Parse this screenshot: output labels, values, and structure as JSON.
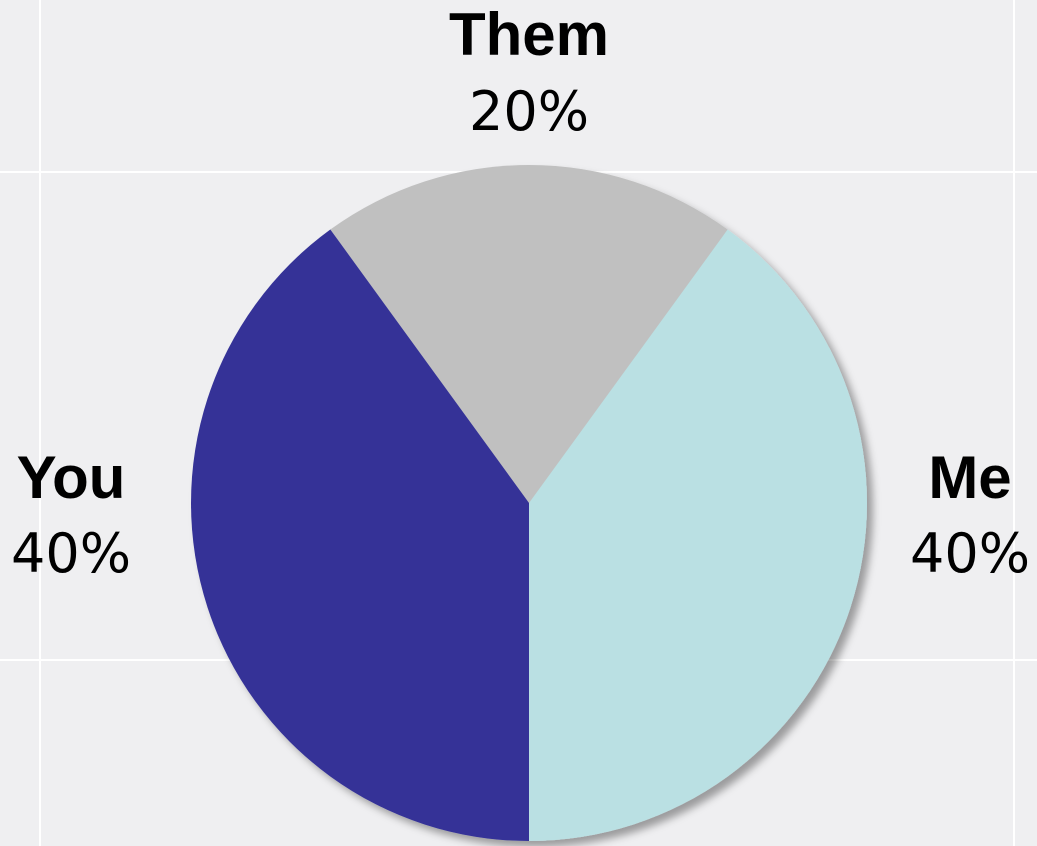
{
  "chart_data": {
    "type": "pie",
    "slices": [
      {
        "label": "Them",
        "value": 20,
        "display_value": "20%",
        "color": "#c0c0c0"
      },
      {
        "label": "Me",
        "value": 40,
        "display_value": "40%",
        "color": "#bae0e3"
      },
      {
        "label": "You",
        "value": 40,
        "display_value": "40%",
        "color": "#343397"
      }
    ],
    "start_angle_deg": -36,
    "direction": "clockwise",
    "background_color": "#efeff1",
    "grid_color": "#ffffff",
    "grid": true
  }
}
